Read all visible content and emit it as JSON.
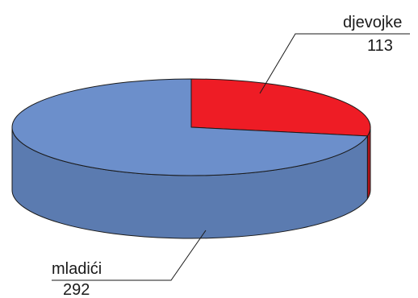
{
  "chart_data": {
    "type": "pie",
    "style": "3d",
    "slices": [
      {
        "label": "djevojke",
        "value": 113,
        "color": "#ee1c25",
        "side_color": "#b01218"
      },
      {
        "label": "mladići",
        "value": 292,
        "color": "#6c8fcb",
        "side_color": "#5b7bb0"
      }
    ],
    "title": "",
    "legend": "none"
  }
}
